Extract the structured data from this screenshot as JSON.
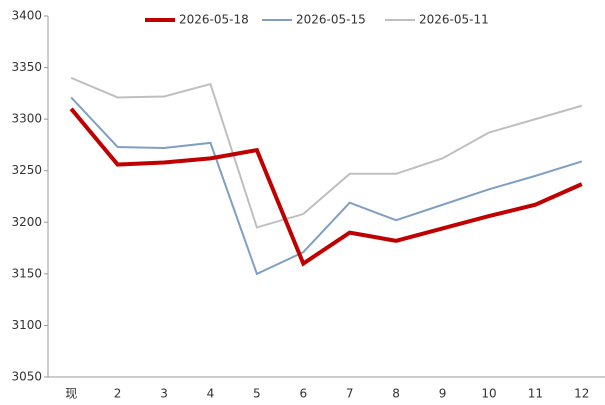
{
  "chart_data": {
    "type": "line",
    "categories": [
      "现",
      "2",
      "3",
      "4",
      "5",
      "6",
      "7",
      "8",
      "9",
      "10",
      "11",
      "12"
    ],
    "series": [
      {
        "name": "2026-05-18",
        "color": "#c00000",
        "width": 4,
        "values": [
          3310,
          3256,
          3258,
          3262,
          3270,
          3160,
          3190,
          3182,
          3194,
          3206,
          3217,
          3237
        ]
      },
      {
        "name": "2026-05-15",
        "color": "#7f9fc4",
        "width": 2,
        "values": [
          3321,
          3273,
          3272,
          3277,
          3150,
          3171,
          3219,
          3202,
          3217,
          3232,
          3245,
          3259
        ]
      },
      {
        "name": "2026-05-11",
        "color": "#bfbfbf",
        "width": 2,
        "values": [
          3340,
          3321,
          3322,
          3334,
          3195,
          3208,
          3247,
          3247,
          3262,
          3287,
          3300,
          3313
        ]
      }
    ],
    "ylim": [
      3050,
      3400
    ],
    "yticks": [
      3050,
      3100,
      3150,
      3200,
      3250,
      3300,
      3350,
      3400
    ],
    "grid": false
  }
}
